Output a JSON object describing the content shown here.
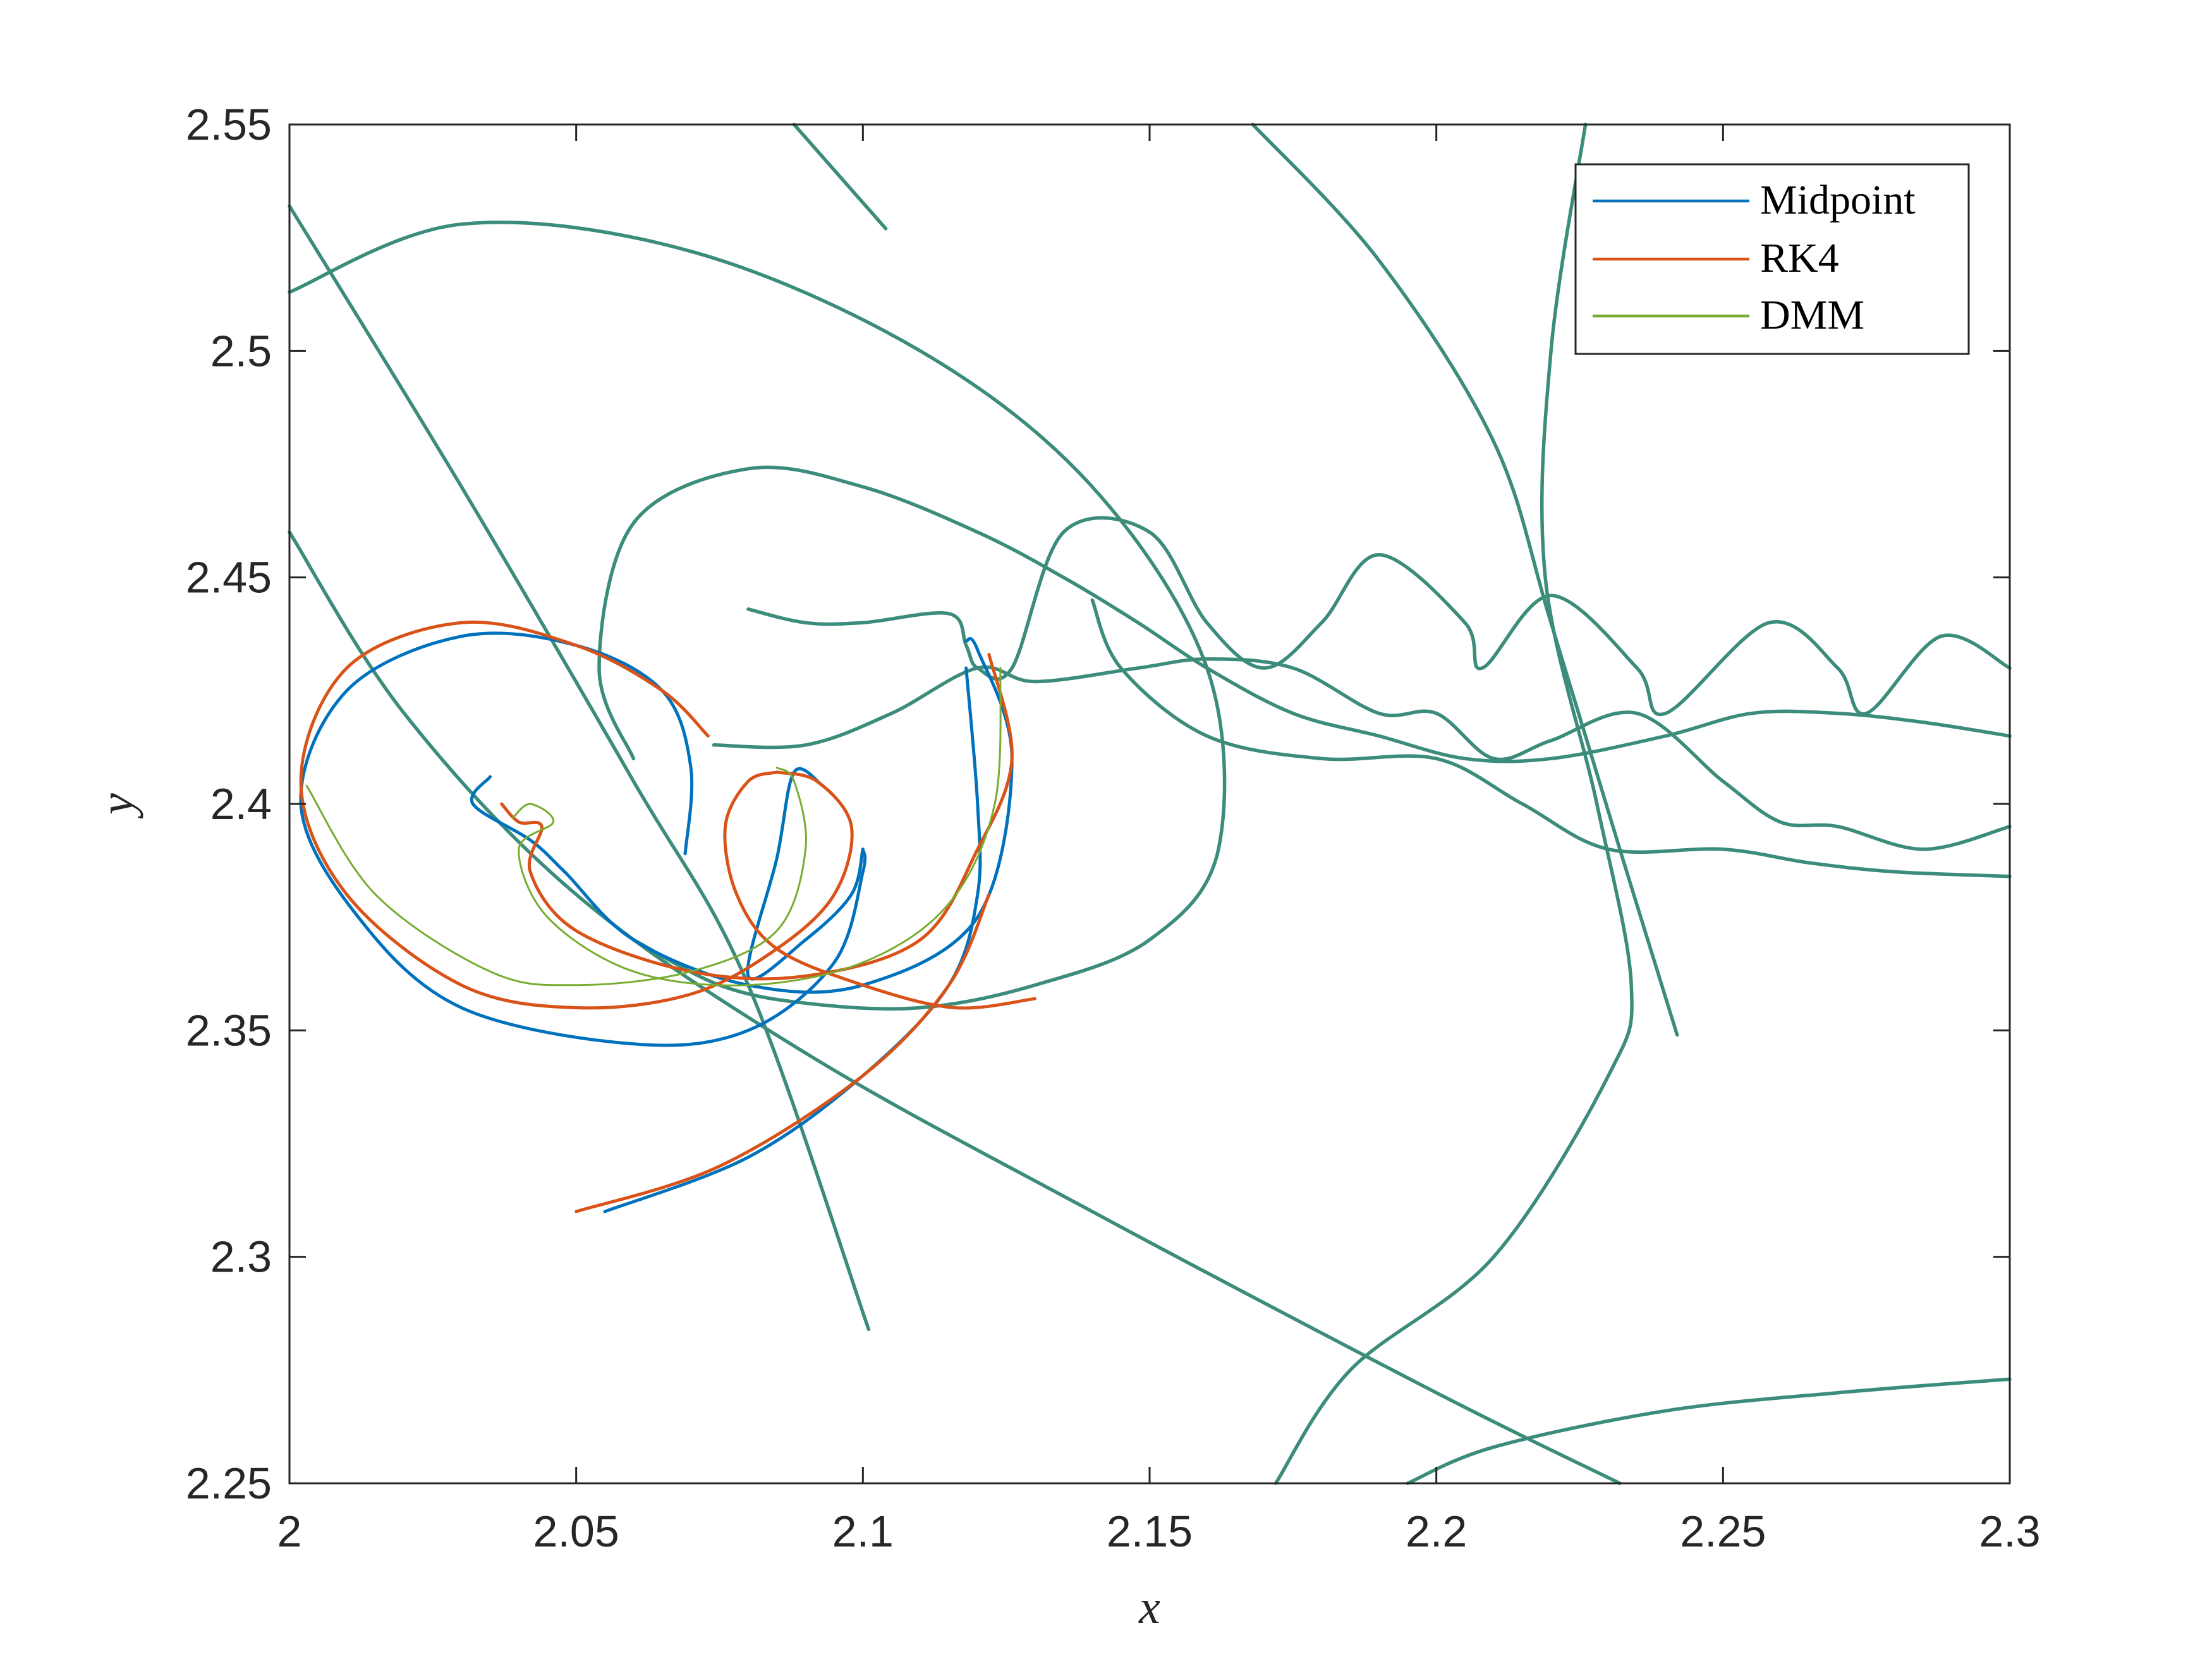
{
  "chart_data": {
    "type": "line",
    "title": "",
    "xlabel": "x",
    "ylabel": "y",
    "xlim": [
      2,
      2.3
    ],
    "ylim": [
      2.25,
      2.55
    ],
    "xticks": [
      "2",
      "2.05",
      "2.1",
      "2.15",
      "2.2",
      "2.25",
      "2.3"
    ],
    "yticks": [
      "2.25",
      "2.3",
      "2.35",
      "2.4",
      "2.45",
      "2.5",
      "2.55"
    ],
    "grid": false,
    "legend_position": "top-right",
    "colors": {
      "Midpoint": "#0072BD",
      "RK4": "#D95319",
      "DMM": "#77AC30",
      "overlap": "#3c8c7c"
    },
    "legend": [
      {
        "name": "Midpoint",
        "color": "#0072BD"
      },
      {
        "name": "RK4",
        "color": "#D95319"
      },
      {
        "name": "DMM",
        "color": "#77AC30"
      }
    ],
    "shared_trajectories": [
      {
        "points": [
          [
            2.088,
            2.55
          ],
          [
            2.104,
            2.527
          ]
        ]
      },
      {
        "points": [
          [
            2.0,
            2.532
          ],
          [
            2.03,
            2.47
          ],
          [
            2.06,
            2.405
          ],
          [
            2.08,
            2.36
          ],
          [
            2.101,
            2.284
          ]
        ]
      },
      {
        "points": [
          [
            2.0,
            2.46
          ],
          [
            2.02,
            2.42
          ],
          [
            2.05,
            2.38
          ],
          [
            2.09,
            2.345
          ],
          [
            2.14,
            2.31
          ],
          [
            2.2,
            2.27
          ],
          [
            2.232,
            2.25
          ]
        ]
      },
      {
        "points": [
          [
            2.168,
            2.55
          ],
          [
            2.19,
            2.52
          ],
          [
            2.21,
            2.48
          ],
          [
            2.22,
            2.44
          ],
          [
            2.232,
            2.39
          ],
          [
            2.242,
            2.349
          ]
        ]
      },
      {
        "points": [
          [
            2.226,
            2.55
          ],
          [
            2.22,
            2.5
          ],
          [
            2.219,
            2.45
          ],
          [
            2.228,
            2.4
          ],
          [
            2.234,
            2.36
          ],
          [
            2.23,
            2.34
          ],
          [
            2.21,
            2.3
          ],
          [
            2.185,
            2.275
          ],
          [
            2.172,
            2.25
          ]
        ]
      },
      {
        "points": [
          [
            2.0,
            2.513
          ],
          [
            2.03,
            2.528
          ],
          [
            2.07,
            2.522
          ],
          [
            2.11,
            2.5
          ],
          [
            2.14,
            2.47
          ],
          [
            2.16,
            2.43
          ],
          [
            2.162,
            2.39
          ],
          [
            2.15,
            2.37
          ],
          [
            2.13,
            2.36
          ],
          [
            2.11,
            2.355
          ],
          [
            2.09,
            2.356
          ],
          [
            2.075,
            2.36
          ],
          [
            2.06,
            2.37
          ]
        ]
      },
      {
        "points": [
          [
            2.195,
            2.25
          ],
          [
            2.21,
            2.258
          ],
          [
            2.24,
            2.266
          ],
          [
            2.27,
            2.27
          ],
          [
            2.3,
            2.273
          ]
        ]
      },
      {
        "points": [
          [
            2.06,
            2.41
          ],
          [
            2.054,
            2.43
          ],
          [
            2.06,
            2.462
          ],
          [
            2.08,
            2.474
          ],
          [
            2.1,
            2.47
          ],
          [
            2.12,
            2.46
          ],
          [
            2.135,
            2.45
          ],
          [
            2.148,
            2.44
          ],
          [
            2.16,
            2.43
          ],
          [
            2.175,
            2.42
          ],
          [
            2.19,
            2.415
          ],
          [
            2.205,
            2.41
          ],
          [
            2.22,
            2.41
          ],
          [
            2.24,
            2.415
          ],
          [
            2.255,
            2.42
          ],
          [
            2.27,
            2.42
          ],
          [
            2.285,
            2.418
          ],
          [
            2.3,
            2.415
          ]
        ]
      },
      {
        "points": [
          [
            2.08,
            2.443
          ],
          [
            2.09,
            2.44
          ],
          [
            2.1,
            2.44
          ],
          [
            2.115,
            2.442
          ],
          [
            2.118,
            2.435
          ],
          [
            2.12,
            2.43
          ],
          [
            2.126,
            2.43
          ],
          [
            2.135,
            2.46
          ],
          [
            2.15,
            2.46
          ],
          [
            2.16,
            2.44
          ],
          [
            2.17,
            2.43
          ],
          [
            2.18,
            2.44
          ],
          [
            2.19,
            2.455
          ],
          [
            2.205,
            2.44
          ],
          [
            2.208,
            2.43
          ],
          [
            2.22,
            2.446
          ],
          [
            2.235,
            2.43
          ],
          [
            2.24,
            2.42
          ],
          [
            2.258,
            2.44
          ],
          [
            2.27,
            2.43
          ],
          [
            2.275,
            2.42
          ],
          [
            2.288,
            2.437
          ],
          [
            2.3,
            2.43
          ]
        ]
      },
      {
        "points": [
          [
            2.074,
            2.413
          ],
          [
            2.09,
            2.413
          ],
          [
            2.105,
            2.42
          ],
          [
            2.12,
            2.43
          ],
          [
            2.13,
            2.427
          ],
          [
            2.148,
            2.43
          ],
          [
            2.16,
            2.432
          ],
          [
            2.175,
            2.43
          ],
          [
            2.19,
            2.42
          ],
          [
            2.2,
            2.42
          ],
          [
            2.21,
            2.41
          ],
          [
            2.22,
            2.414
          ],
          [
            2.235,
            2.42
          ],
          [
            2.25,
            2.405
          ],
          [
            2.26,
            2.396
          ],
          [
            2.27,
            2.395
          ],
          [
            2.285,
            2.39
          ],
          [
            2.3,
            2.395
          ]
        ]
      },
      {
        "points": [
          [
            2.14,
            2.445
          ],
          [
            2.145,
            2.43
          ],
          [
            2.16,
            2.415
          ],
          [
            2.18,
            2.41
          ],
          [
            2.2,
            2.41
          ],
          [
            2.215,
            2.4
          ],
          [
            2.23,
            2.39
          ],
          [
            2.25,
            2.39
          ],
          [
            2.265,
            2.387
          ],
          [
            2.28,
            2.385
          ],
          [
            2.3,
            2.384
          ]
        ]
      }
    ],
    "diverging_trajectories": [
      {
        "series": "Midpoint",
        "points": [
          [
            2.035,
            2.406
          ],
          [
            2.032,
            2.4
          ],
          [
            2.042,
            2.392
          ],
          [
            2.048,
            2.385
          ],
          [
            2.06,
            2.37
          ],
          [
            2.08,
            2.36
          ],
          [
            2.1,
            2.36
          ],
          [
            2.12,
            2.375
          ],
          [
            2.126,
            2.41
          ],
          [
            2.12,
            2.434
          ],
          [
            2.118,
            2.436
          ]
        ]
      },
      {
        "series": "Midpoint",
        "points": [
          [
            2.069,
            2.389
          ],
          [
            2.07,
            2.408
          ],
          [
            2.065,
            2.425
          ],
          [
            2.05,
            2.435
          ],
          [
            2.03,
            2.437
          ],
          [
            2.01,
            2.425
          ],
          [
            2.002,
            2.4
          ],
          [
            2.012,
            2.375
          ],
          [
            2.03,
            2.355
          ],
          [
            2.06,
            2.347
          ],
          [
            2.08,
            2.35
          ],
          [
            2.095,
            2.365
          ],
          [
            2.1,
            2.385
          ],
          [
            2.1,
            2.39
          ]
        ]
      },
      {
        "series": "Midpoint",
        "points": [
          [
            2.055,
            2.31
          ],
          [
            2.08,
            2.322
          ],
          [
            2.1,
            2.34
          ],
          [
            2.115,
            2.36
          ],
          [
            2.12,
            2.38
          ],
          [
            2.12,
            2.4
          ],
          [
            2.118,
            2.43
          ]
        ]
      },
      {
        "series": "Midpoint",
        "points": [
          [
            2.1,
            2.39
          ],
          [
            2.098,
            2.38
          ],
          [
            2.09,
            2.37
          ],
          [
            2.08,
            2.362
          ],
          [
            2.085,
            2.388
          ],
          [
            2.088,
            2.407
          ],
          [
            2.093,
            2.404
          ]
        ]
      },
      {
        "series": "RK4",
        "points": [
          [
            2.037,
            2.4
          ],
          [
            2.04,
            2.396
          ],
          [
            2.044,
            2.395
          ],
          [
            2.042,
            2.385
          ],
          [
            2.05,
            2.372
          ],
          [
            2.07,
            2.363
          ],
          [
            2.09,
            2.362
          ],
          [
            2.11,
            2.37
          ],
          [
            2.12,
            2.39
          ],
          [
            2.126,
            2.41
          ],
          [
            2.122,
            2.433
          ]
        ]
      },
      {
        "series": "RK4",
        "points": [
          [
            2.073,
            2.415
          ],
          [
            2.065,
            2.425
          ],
          [
            2.05,
            2.435
          ],
          [
            2.03,
            2.44
          ],
          [
            2.01,
            2.43
          ],
          [
            2.002,
            2.405
          ],
          [
            2.01,
            2.38
          ],
          [
            2.03,
            2.36
          ],
          [
            2.05,
            2.355
          ],
          [
            2.07,
            2.358
          ],
          [
            2.085,
            2.368
          ],
          [
            2.095,
            2.38
          ],
          [
            2.098,
            2.395
          ],
          [
            2.092,
            2.405
          ],
          [
            2.085,
            2.407
          ]
        ]
      },
      {
        "series": "RK4",
        "points": [
          [
            2.05,
            2.31
          ],
          [
            2.075,
            2.32
          ],
          [
            2.1,
            2.34
          ],
          [
            2.115,
            2.36
          ],
          [
            2.122,
            2.38
          ]
        ]
      },
      {
        "series": "RK4",
        "points": [
          [
            2.085,
            2.407
          ],
          [
            2.08,
            2.405
          ],
          [
            2.076,
            2.395
          ],
          [
            2.078,
            2.38
          ],
          [
            2.085,
            2.368
          ],
          [
            2.1,
            2.36
          ],
          [
            2.116,
            2.355
          ],
          [
            2.13,
            2.357
          ]
        ]
      },
      {
        "series": "DMM",
        "points": [
          [
            2.039,
            2.397
          ],
          [
            2.042,
            2.4
          ],
          [
            2.046,
            2.396
          ],
          [
            2.04,
            2.39
          ],
          [
            2.045,
            2.375
          ],
          [
            2.06,
            2.363
          ],
          [
            2.08,
            2.36
          ],
          [
            2.1,
            2.365
          ],
          [
            2.115,
            2.378
          ],
          [
            2.123,
            2.4
          ],
          [
            2.124,
            2.43
          ]
        ]
      },
      {
        "series": "DMM",
        "points": [
          [
            2.003,
            2.404
          ],
          [
            2.015,
            2.38
          ],
          [
            2.035,
            2.363
          ],
          [
            2.05,
            2.36
          ],
          [
            2.07,
            2.363
          ],
          [
            2.085,
            2.372
          ],
          [
            2.09,
            2.39
          ],
          [
            2.088,
            2.405
          ],
          [
            2.085,
            2.408
          ]
        ]
      }
    ]
  }
}
